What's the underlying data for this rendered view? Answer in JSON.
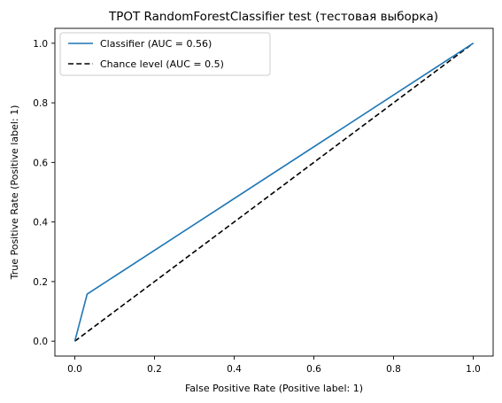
{
  "chart_data": {
    "type": "line",
    "title": "TPOT RandomForestClassifier test (тестовая выборка)",
    "xlabel": "False Positive Rate (Positive label: 1)",
    "ylabel": "True Positive Rate (Positive label: 1)",
    "xlim": [
      -0.05,
      1.05
    ],
    "ylim": [
      -0.05,
      1.05
    ],
    "xticks": [
      0.0,
      0.2,
      0.4,
      0.6,
      0.8,
      1.0
    ],
    "yticks": [
      0.0,
      0.2,
      0.4,
      0.6,
      0.8,
      1.0
    ],
    "xtick_labels": [
      "0.0",
      "0.2",
      "0.4",
      "0.6",
      "0.8",
      "1.0"
    ],
    "ytick_labels": [
      "0.0",
      "0.2",
      "0.4",
      "0.6",
      "0.8",
      "1.0"
    ],
    "grid": false,
    "legend_position": "top-left",
    "series": [
      {
        "name": "Classifier (AUC = 0.56)",
        "color": "#1f77b4",
        "style": "solid",
        "x": [
          0.0,
          0.031,
          1.0
        ],
        "y": [
          0.0,
          0.158,
          1.0
        ]
      },
      {
        "name": "Chance level (AUC = 0.5)",
        "color": "#000000",
        "style": "dashed",
        "x": [
          0.0,
          1.0
        ],
        "y": [
          0.0,
          1.0
        ]
      }
    ]
  }
}
